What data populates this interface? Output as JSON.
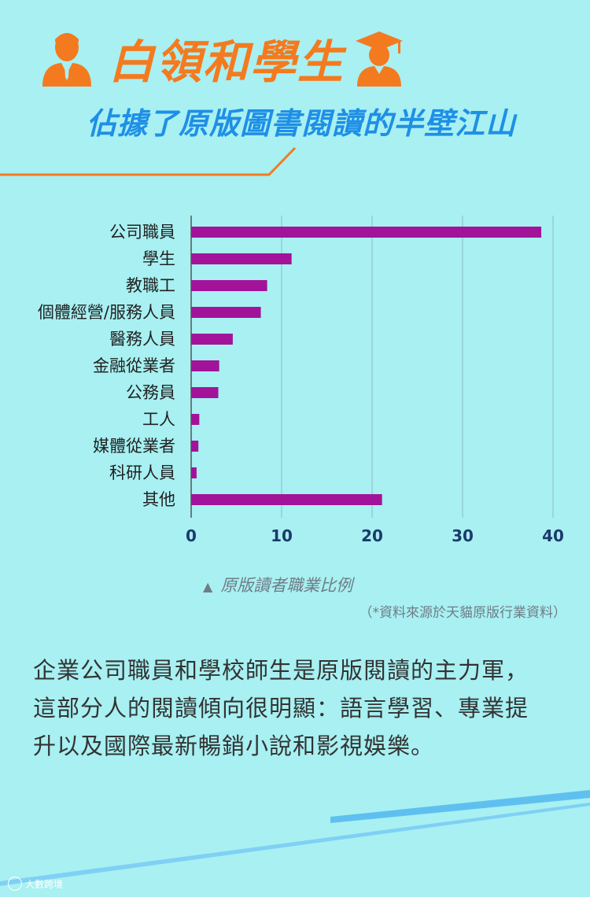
{
  "header": {
    "title": "白領和學生",
    "subtitle": "佔據了原版圖書閱讀的半壁江山",
    "icons": [
      "office-worker-icon",
      "graduate-student-icon"
    ]
  },
  "colors": {
    "accent": "#f47a1f",
    "subtitle": "#1f8fe6",
    "bar": "#a2139a",
    "background": "#a8f0f2"
  },
  "chart_data": {
    "type": "bar",
    "orientation": "horizontal",
    "categories": [
      "公司職員",
      "學生",
      "教職工",
      "個體經營/服務人員",
      "醫務人員",
      "金融從業者",
      "公務員",
      "工人",
      "媒體從業者",
      "科研人員",
      "其他"
    ],
    "values": [
      38.7,
      11.1,
      8.4,
      7.7,
      4.6,
      3.1,
      3.0,
      0.9,
      0.8,
      0.6,
      21.1
    ],
    "xticks": [
      0,
      10,
      20,
      30,
      40
    ],
    "xlim": [
      0,
      40
    ],
    "grid": true,
    "caption": "原版讀者職業比例",
    "source": "（*資料來源於天貓原版行業資料）"
  },
  "body": {
    "lines": [
      "企業公司職員和學校師生是原版閱讀的主力軍，",
      "這部分人的閱讀傾向很明顯：語言學習、專業提",
      "升以及國際最新暢銷小說和影視娛樂。"
    ]
  },
  "brand": {
    "name": "大數跨境"
  }
}
